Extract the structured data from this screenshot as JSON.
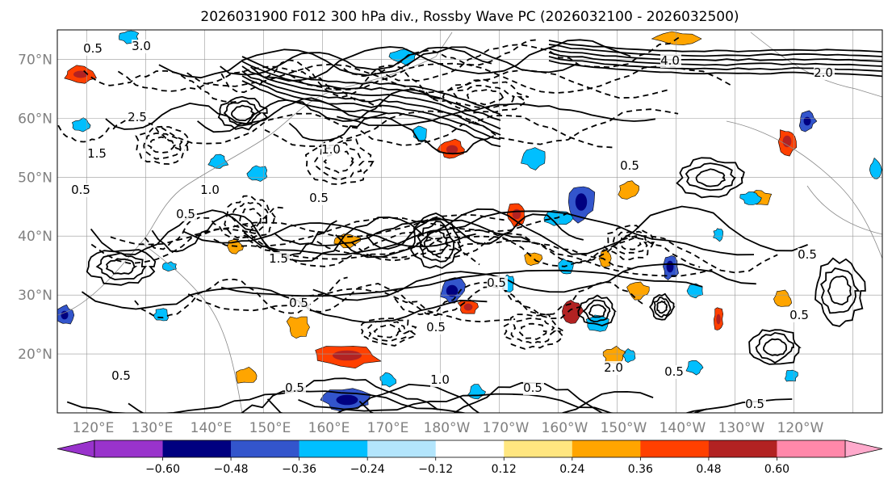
{
  "title": "2026031900 F012 300 hPa div., Rossby Wave PC (2026032100 - 2026032500)",
  "map": {
    "lat_labels": [
      "20°N",
      "30°N",
      "40°N",
      "50°N",
      "60°N",
      "70°N"
    ],
    "lat_values": [
      20,
      30,
      40,
      50,
      60,
      70
    ],
    "lon_labels": [
      "120°E",
      "130°E",
      "140°E",
      "150°E",
      "160°E",
      "170°E",
      "180°W",
      "170°W",
      "160°W",
      "150°W",
      "140°W",
      "130°W",
      "120°W"
    ],
    "lat_range": [
      10,
      75
    ],
    "lon_range": [
      115,
      255
    ],
    "contour_labels": [
      "3.0",
      "0.5",
      "2.5",
      "1.5",
      "1.0",
      "0.5",
      "1.0",
      "0.5",
      "0.5",
      "1.5",
      "0.5",
      "0.5",
      "4.0",
      "2.0",
      "0.5",
      "0.5",
      "0.5",
      "2.0",
      "1.0",
      "0.5",
      "0.5",
      "0.5",
      "0.5",
      "0.5",
      "0.5"
    ]
  },
  "colorbar": {
    "ticks": [
      "−0.60",
      "−0.48",
      "−0.36",
      "−0.24",
      "−0.12",
      "0.12",
      "0.24",
      "0.36",
      "0.48",
      "0.60"
    ],
    "colors": [
      "#9933cc",
      "#000080",
      "#3355cc",
      "#00bfff",
      "#b3e5fc",
      "#ffffff",
      "#ffe680",
      "#ffa500",
      "#ff4000",
      "#b22222",
      "#ff88aa",
      "#ffaacc"
    ]
  }
}
